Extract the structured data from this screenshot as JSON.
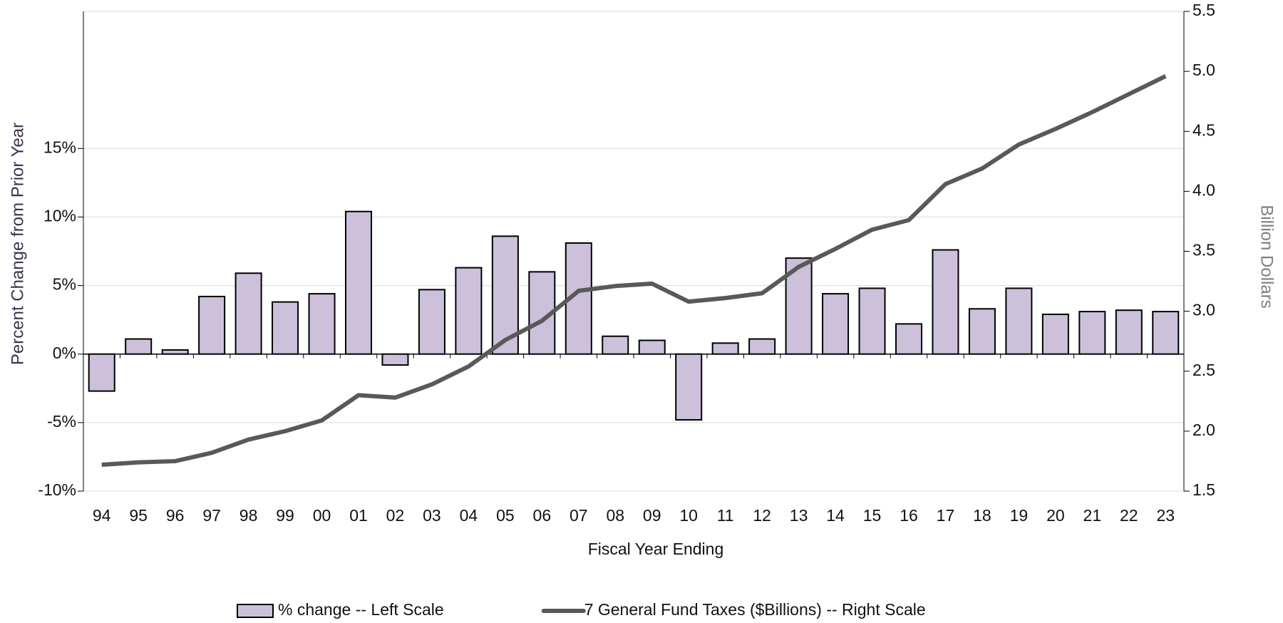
{
  "chart_data": {
    "type": "bar",
    "categories": [
      "94",
      "95",
      "96",
      "97",
      "98",
      "99",
      "00",
      "01",
      "02",
      "03",
      "04",
      "05",
      "06",
      "07",
      "08",
      "09",
      "10",
      "11",
      "12",
      "13",
      "14",
      "15",
      "16",
      "17",
      "18",
      "19",
      "20",
      "21",
      "22",
      "23"
    ],
    "series": [
      {
        "name": "% change -- Left Scale",
        "type": "bar",
        "color": "#ccc0da",
        "values": [
          -2.7,
          1.1,
          0.3,
          4.2,
          5.9,
          3.8,
          4.4,
          10.4,
          -0.8,
          4.7,
          6.3,
          8.6,
          6.0,
          8.1,
          1.3,
          1.0,
          -4.8,
          0.8,
          1.1,
          7.0,
          4.4,
          4.8,
          2.2,
          7.6,
          3.3,
          4.8,
          2.9,
          3.1,
          3.2,
          3.1
        ]
      },
      {
        "name": "7 General Fund Taxes ($Billions) -- Right Scale",
        "type": "line",
        "color": "#595959",
        "axis": "y2",
        "values": [
          1.72,
          1.74,
          1.75,
          1.82,
          1.93,
          2.0,
          2.09,
          2.3,
          2.28,
          2.39,
          2.54,
          2.76,
          2.92,
          3.17,
          3.21,
          3.23,
          3.08,
          3.11,
          3.15,
          3.37,
          3.52,
          3.68,
          3.76,
          4.06,
          4.19,
          4.39,
          4.52,
          4.66,
          4.81,
          4.96
        ]
      }
    ],
    "x_label": "Fiscal Year Ending",
    "y_label": "Percent  Change from  Prior Year",
    "y2_label": "Billion Dollars",
    "ylim": [
      -10,
      25
    ],
    "yticks": [
      {
        "value": -10,
        "label": "-10%"
      },
      {
        "value": -5,
        "label": "-5%"
      },
      {
        "value": 0,
        "label": "0%"
      },
      {
        "value": 5,
        "label": "5%"
      },
      {
        "value": 10,
        "label": "10%"
      },
      {
        "value": 15,
        "label": "15%"
      }
    ],
    "y2lim": [
      1.5,
      5.5
    ],
    "y2ticks": [
      1.5,
      {
        "value": 2,
        "label": "2.0"
      },
      2.5,
      {
        "value": 3,
        "label": "3.0"
      },
      3.5,
      {
        "value": 4,
        "label": "4.0"
      },
      4.5,
      {
        "value": 5,
        "label": "5.0"
      },
      5.5
    ],
    "grid": true,
    "legend": "bottom"
  }
}
